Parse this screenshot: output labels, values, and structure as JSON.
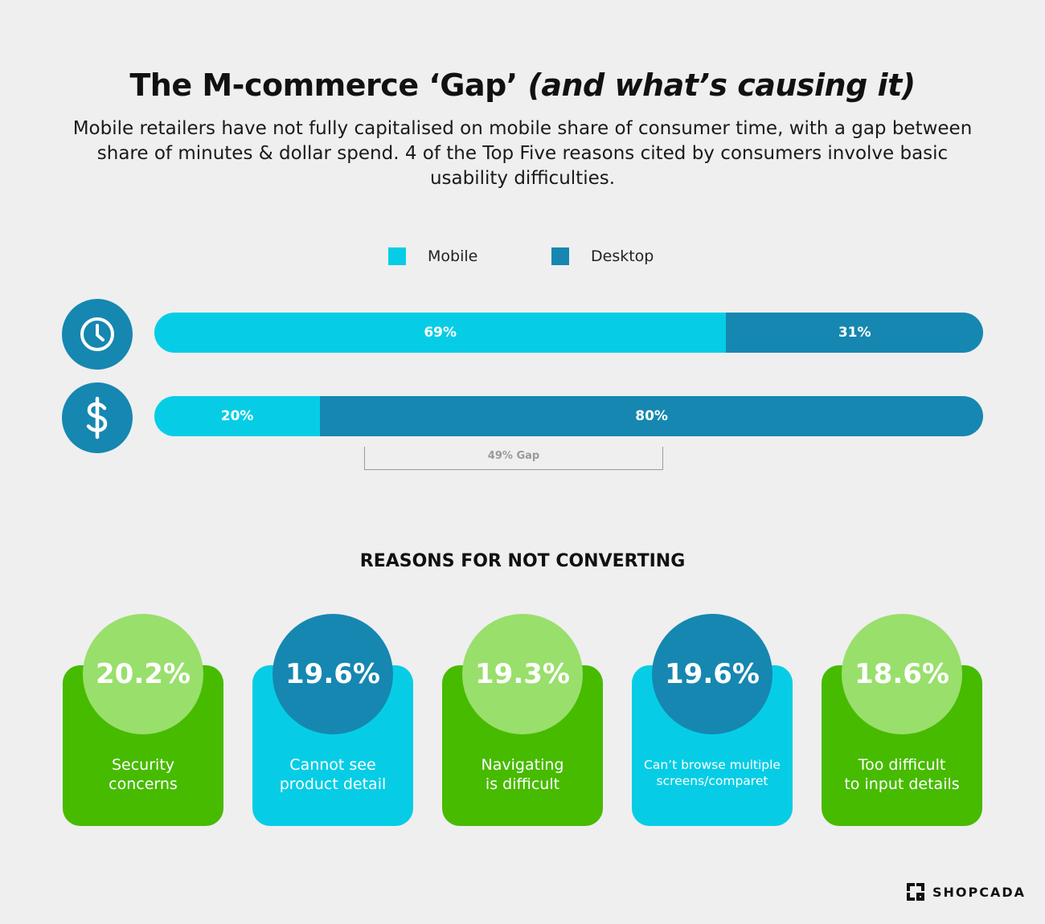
{
  "header": {
    "title_main": "The M-commerce ‘Gap’ ",
    "title_italic": "(and what’s causing it)",
    "subtitle": "Mobile retailers have not fully capitalised on mobile share of consumer time, with a gap between share of minutes & dollar spend. 4 of the Top Five reasons cited by consumers involve basic usability difficulties."
  },
  "colors": {
    "mobile": "#06cde5",
    "desktop": "#1687b1",
    "green_card": "#47bb00",
    "green_circle": "#99df6c",
    "cyan_card": "#06cde5",
    "blue_circle": "#1687b1",
    "background": "#efefef"
  },
  "chart_data": {
    "type": "bar",
    "stacked": true,
    "orientation": "horizontal",
    "categories": [
      "clock-icon",
      "dollar-icon"
    ],
    "series": [
      {
        "name": "Mobile",
        "values": [
          69,
          20
        ],
        "labels": [
          "69%",
          "20%"
        ]
      },
      {
        "name": "Desktop",
        "values": [
          31,
          80
        ],
        "labels": [
          "31%",
          "80%"
        ]
      }
    ],
    "legend": "top-center",
    "annotation": "49% Gap"
  },
  "reasons": {
    "title": "REASONS FOR NOT CONVERTING",
    "items": [
      {
        "value": "20.2%",
        "line1": "Security",
        "line2": "concerns",
        "card_color": "#47bb00",
        "circle_color": "#99df6c"
      },
      {
        "value": "19.6%",
        "line1": "Cannot see",
        "line2": "product detail",
        "card_color": "#06cde5",
        "circle_color": "#1687b1"
      },
      {
        "value": "19.3%",
        "line1": "Navigating",
        "line2": "is difficult",
        "card_color": "#47bb00",
        "circle_color": "#99df6c"
      },
      {
        "value": "19.6%",
        "line1": "Can’t browse multiple",
        "line2": "screens/comparet",
        "card_color": "#06cde5",
        "circle_color": "#1687b1"
      },
      {
        "value": "18.6%",
        "line1": "Too difficult",
        "line2": "to input details",
        "card_color": "#47bb00",
        "circle_color": "#99df6c"
      }
    ]
  },
  "footer": {
    "logo_text": "SHOPCADA"
  }
}
